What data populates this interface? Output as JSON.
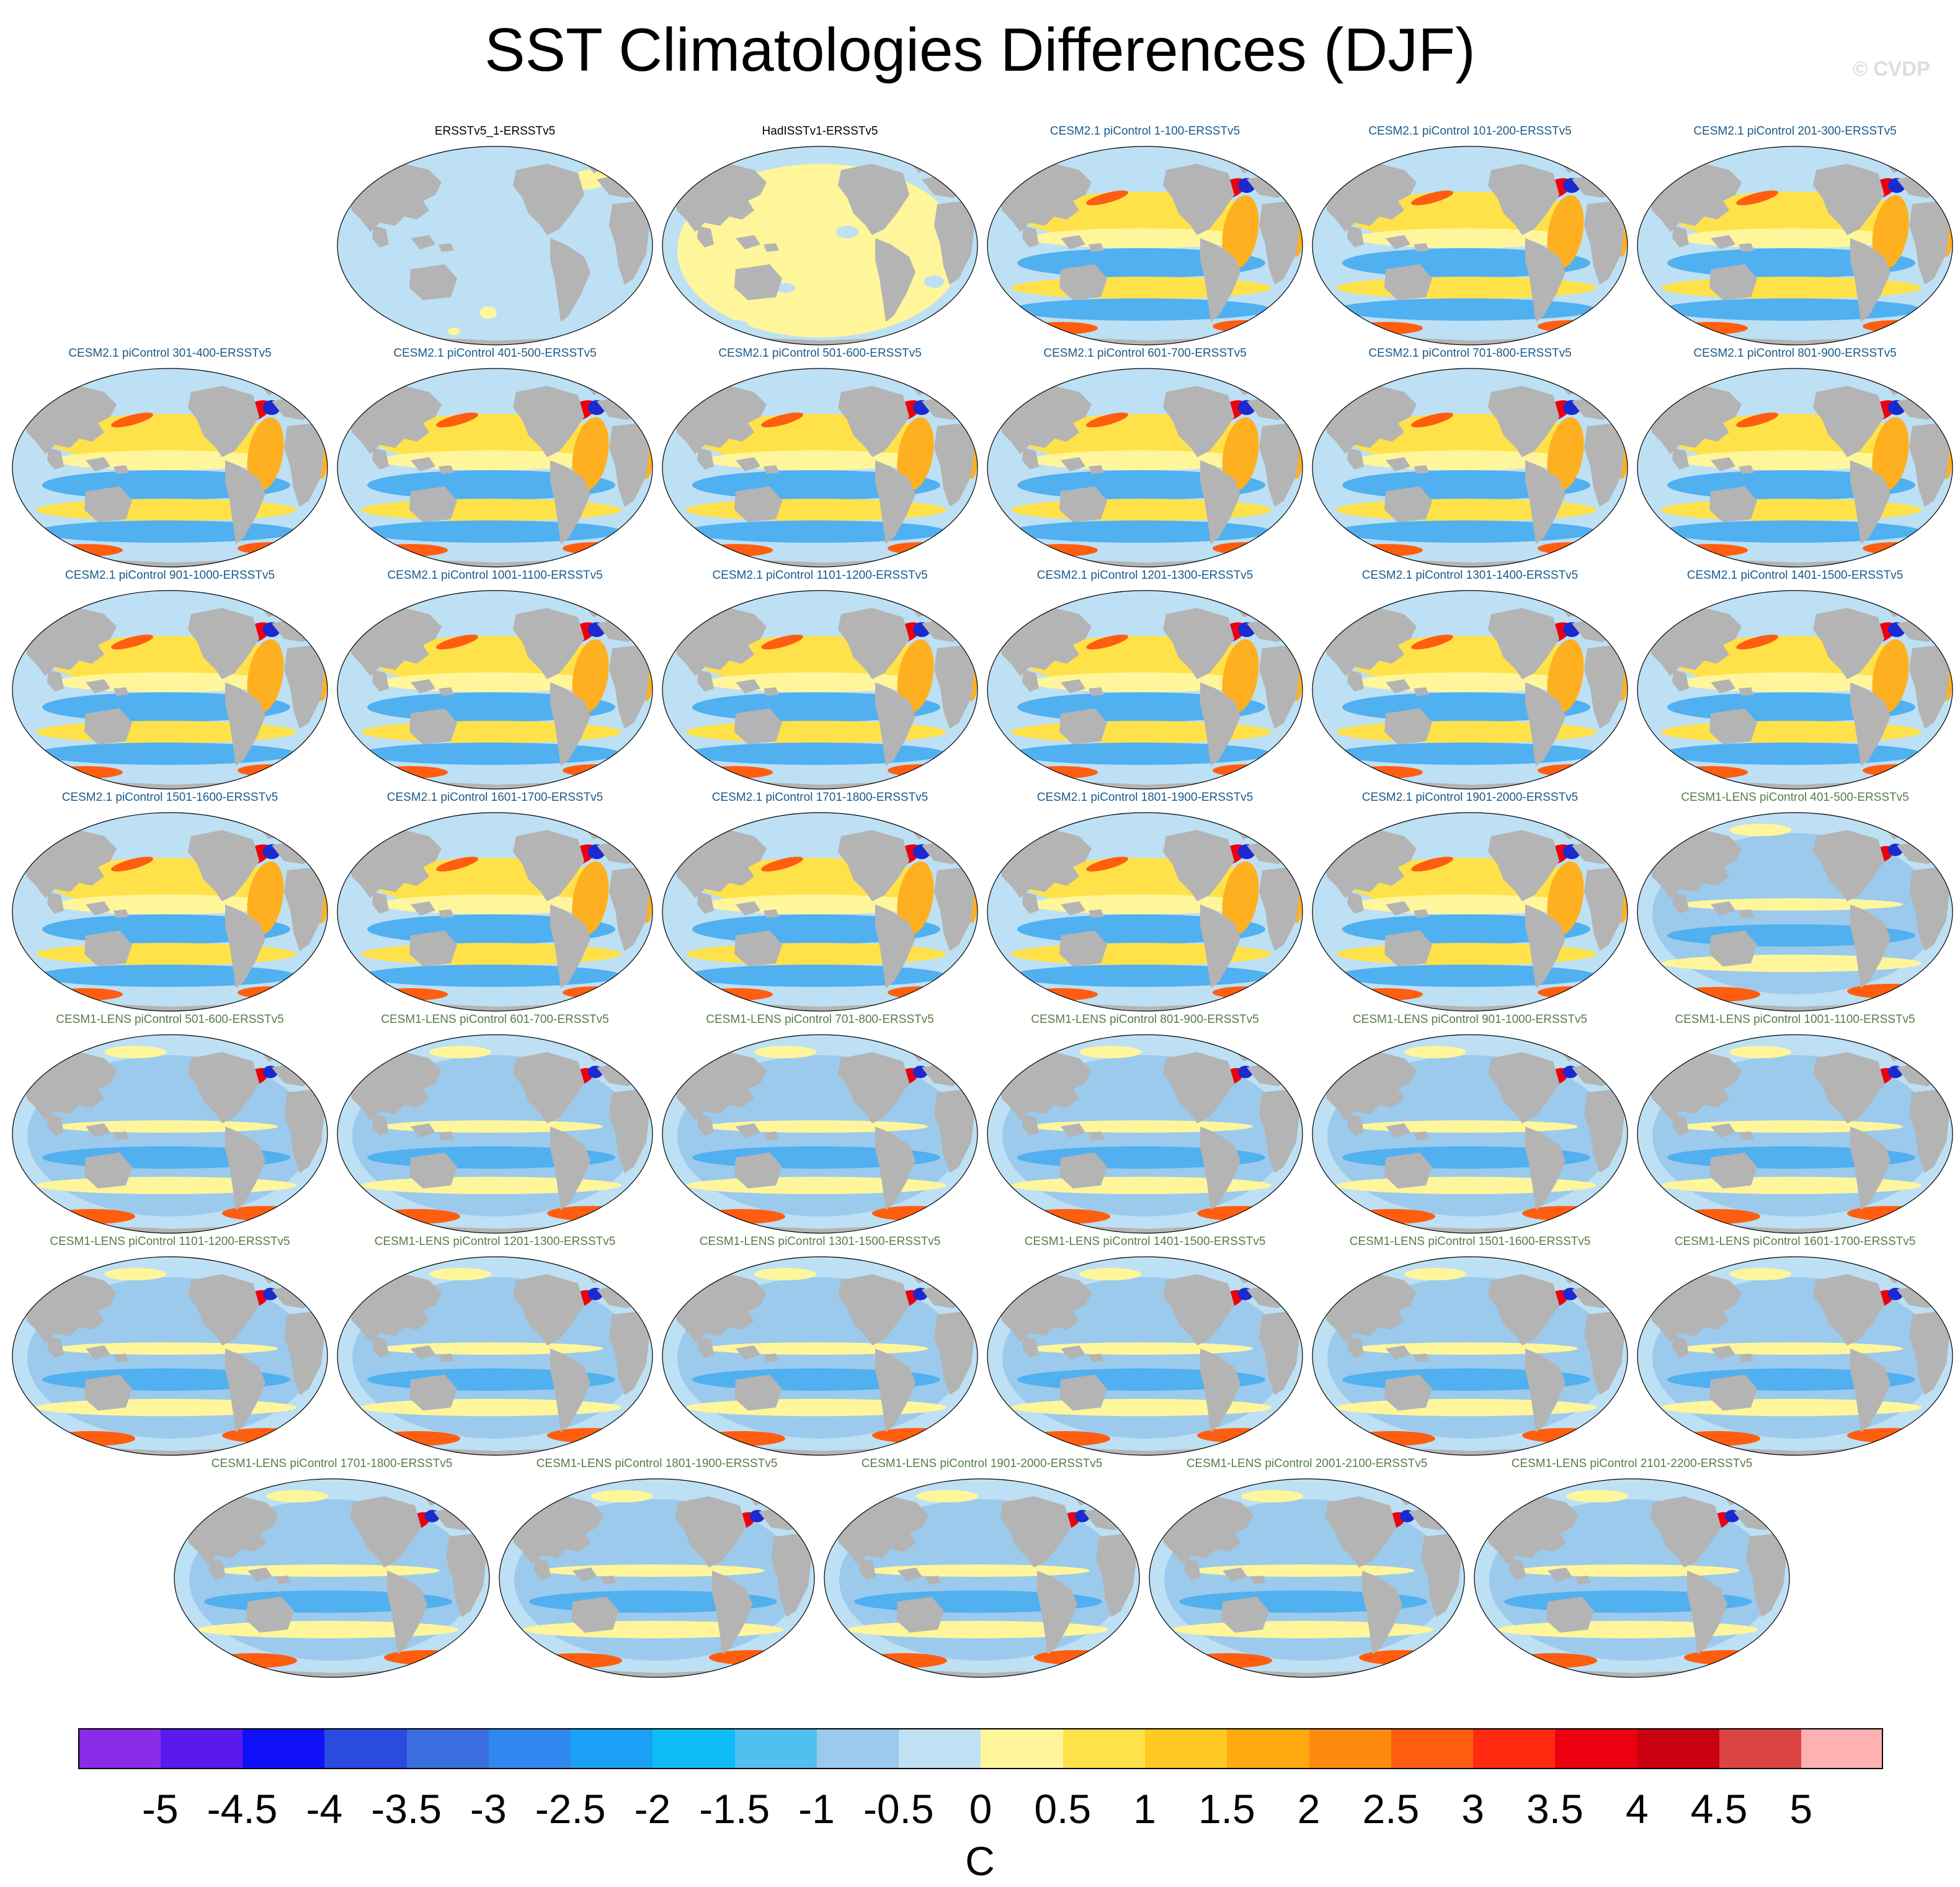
{
  "title": "SST Climatologies Differences (DJF)",
  "credit": "© CVDP",
  "panels": [
    {
      "label": "ERSSTv5_1-ERSSTv5",
      "color": "#000000",
      "style": "obs0"
    },
    {
      "label": "HadISSTv1-ERSSTv5",
      "color": "#000000",
      "style": "obs1"
    },
    {
      "label": "CESM2.1 piControl 1-100-ERSSTv5",
      "color": "#1a5a8a",
      "style": "cesm2"
    },
    {
      "label": "CESM2.1 piControl 101-200-ERSSTv5",
      "color": "#1a5a8a",
      "style": "cesm2"
    },
    {
      "label": "CESM2.1 piControl 201-300-ERSSTv5",
      "color": "#1a5a8a",
      "style": "cesm2"
    },
    {
      "label": "CESM2.1 piControl 301-400-ERSSTv5",
      "color": "#1a5a8a",
      "style": "cesm2"
    },
    {
      "label": "CESM2.1 piControl 401-500-ERSSTv5",
      "color": "#1a5a8a",
      "style": "cesm2"
    },
    {
      "label": "CESM2.1 piControl 501-600-ERSSTv5",
      "color": "#1a5a8a",
      "style": "cesm2"
    },
    {
      "label": "CESM2.1 piControl 601-700-ERSSTv5",
      "color": "#1a5a8a",
      "style": "cesm2"
    },
    {
      "label": "CESM2.1 piControl 701-800-ERSSTv5",
      "color": "#1a5a8a",
      "style": "cesm2"
    },
    {
      "label": "CESM2.1 piControl 801-900-ERSSTv5",
      "color": "#1a5a8a",
      "style": "cesm2"
    },
    {
      "label": "CESM2.1 piControl 901-1000-ERSSTv5",
      "color": "#1a5a8a",
      "style": "cesm2"
    },
    {
      "label": "CESM2.1 piControl 1001-1100-ERSSTv5",
      "color": "#1a5a8a",
      "style": "cesm2"
    },
    {
      "label": "CESM2.1 piControl 1101-1200-ERSSTv5",
      "color": "#1a5a8a",
      "style": "cesm2"
    },
    {
      "label": "CESM2.1 piControl 1201-1300-ERSSTv5",
      "color": "#1a5a8a",
      "style": "cesm2"
    },
    {
      "label": "CESM2.1 piControl 1301-1400-ERSSTv5",
      "color": "#1a5a8a",
      "style": "cesm2"
    },
    {
      "label": "CESM2.1 piControl 1401-1500-ERSSTv5",
      "color": "#1a5a8a",
      "style": "cesm2"
    },
    {
      "label": "CESM2.1 piControl 1501-1600-ERSSTv5",
      "color": "#1a5a8a",
      "style": "cesm2"
    },
    {
      "label": "CESM2.1 piControl 1601-1700-ERSSTv5",
      "color": "#1a5a8a",
      "style": "cesm2"
    },
    {
      "label": "CESM2.1 piControl 1701-1800-ERSSTv5",
      "color": "#1a5a8a",
      "style": "cesm2"
    },
    {
      "label": "CESM2.1 piControl 1801-1900-ERSSTv5",
      "color": "#1a5a8a",
      "style": "cesm2"
    },
    {
      "label": "CESM2.1 piControl 1901-2000-ERSSTv5",
      "color": "#1a5a8a",
      "style": "cesm2"
    },
    {
      "label": "CESM1-LENS piControl 401-500-ERSSTv5",
      "color": "#5a7a4a",
      "style": "cesm1"
    },
    {
      "label": "CESM1-LENS piControl 501-600-ERSSTv5",
      "color": "#5a7a4a",
      "style": "cesm1"
    },
    {
      "label": "CESM1-LENS piControl 601-700-ERSSTv5",
      "color": "#5a7a4a",
      "style": "cesm1"
    },
    {
      "label": "CESM1-LENS piControl 701-800-ERSSTv5",
      "color": "#5a7a4a",
      "style": "cesm1"
    },
    {
      "label": "CESM1-LENS piControl 801-900-ERSSTv5",
      "color": "#5a7a4a",
      "style": "cesm1"
    },
    {
      "label": "CESM1-LENS piControl 901-1000-ERSSTv5",
      "color": "#5a7a4a",
      "style": "cesm1"
    },
    {
      "label": "CESM1-LENS piControl 1001-1100-ERSSTv5",
      "color": "#5a7a4a",
      "style": "cesm1"
    },
    {
      "label": "CESM1-LENS piControl 1101-1200-ERSSTv5",
      "color": "#5a7a4a",
      "style": "cesm1"
    },
    {
      "label": "CESM1-LENS piControl 1201-1300-ERSSTv5",
      "color": "#5a7a4a",
      "style": "cesm1"
    },
    {
      "label": "CESM1-LENS piControl 1301-1500-ERSSTv5",
      "color": "#5a7a4a",
      "style": "cesm1"
    },
    {
      "label": "CESM1-LENS piControl 1401-1500-ERSSTv5",
      "color": "#5a7a4a",
      "style": "cesm1"
    },
    {
      "label": "CESM1-LENS piControl 1501-1600-ERSSTv5",
      "color": "#5a7a4a",
      "style": "cesm1"
    },
    {
      "label": "CESM1-LENS piControl 1601-1700-ERSSTv5",
      "color": "#5a7a4a",
      "style": "cesm1"
    },
    {
      "label": "CESM1-LENS piControl 1701-1800-ERSSTv5",
      "color": "#5a7a4a",
      "style": "cesm1"
    },
    {
      "label": "CESM1-LENS piControl 1801-1900-ERSSTv5",
      "color": "#5a7a4a",
      "style": "cesm1"
    },
    {
      "label": "CESM1-LENS piControl 1901-2000-ERSSTv5",
      "color": "#5a7a4a",
      "style": "cesm1"
    },
    {
      "label": "CESM1-LENS piControl 2001-2100-ERSSTv5",
      "color": "#5a7a4a",
      "style": "cesm1"
    },
    {
      "label": "CESM1-LENS piControl 2101-2200-ERSSTv5",
      "color": "#5a7a4a",
      "style": "cesm1"
    }
  ],
  "colorbar": {
    "units": "C",
    "labels": [
      "-5",
      "-4.5",
      "-4",
      "-3.5",
      "-3",
      "-2.5",
      "-2",
      "-1.5",
      "-1",
      "-0.5",
      "0",
      "0.5",
      "1",
      "1.5",
      "2",
      "2.5",
      "3",
      "3.5",
      "4",
      "4.5",
      "5"
    ],
    "colors": [
      "#8a2be8",
      "#5a1aee",
      "#1010f8",
      "#2a4ae0",
      "#3a6ee0",
      "#2e88f0",
      "#1aa0f4",
      "#10bcf8",
      "#50c0f0",
      "#9ccaec",
      "#c0e0f4",
      "#fff69c",
      "#ffe24a",
      "#ffc822",
      "#ffaa10",
      "#ff8a10",
      "#ff5e10",
      "#ff2a10",
      "#ec0010",
      "#c80010",
      "#dc4444",
      "#ffb0b0"
    ]
  },
  "map_colors": {
    "ocean_neutral": "#bde0f4",
    "land": "#b4b4b4",
    "neg_light": "#9ccaec",
    "neg_mid": "#50b0f0",
    "neg_strong": "#2e88f0",
    "pos_light": "#fff69c",
    "pos_mid": "#ffe24a",
    "pos_strong": "#ffb020",
    "hot": "#ff5e10",
    "very_hot": "#ec0010",
    "cold_core": "#1a2ad0"
  }
}
